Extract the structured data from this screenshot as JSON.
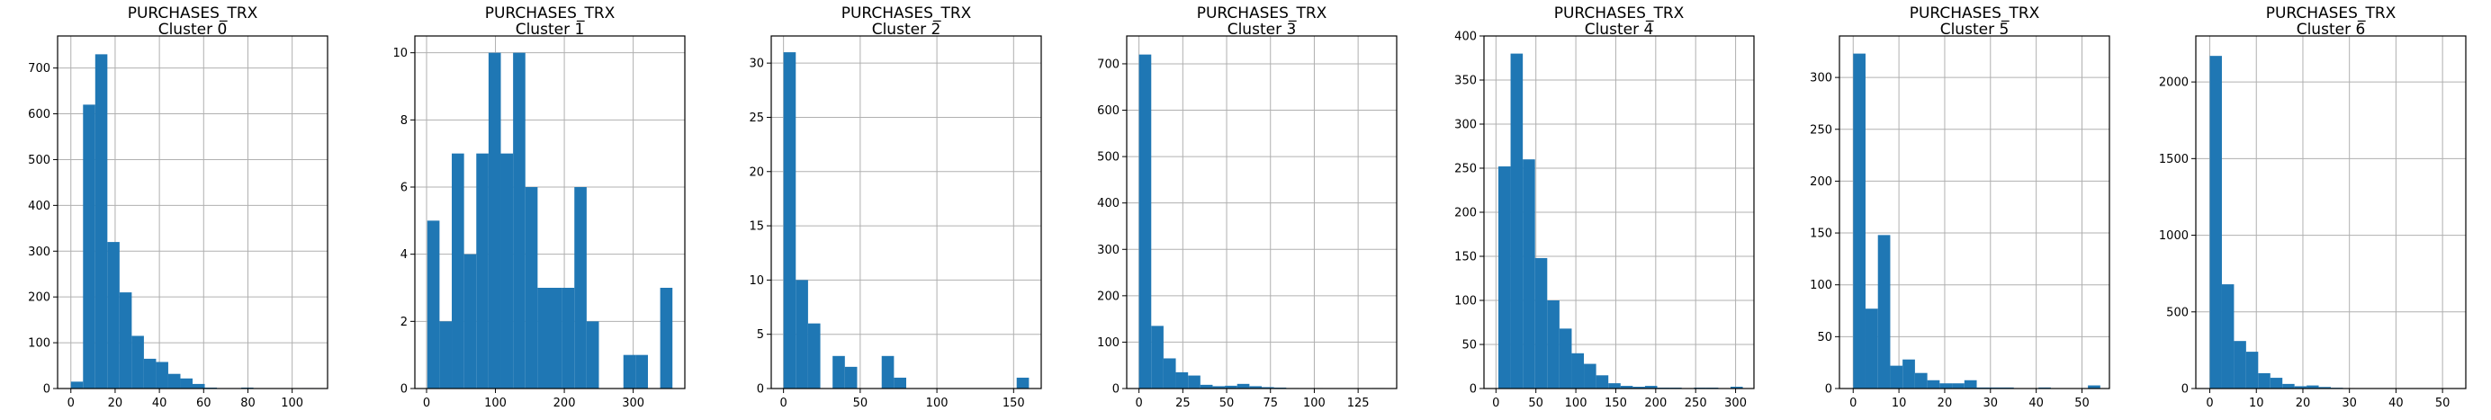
{
  "figure": {
    "bar_color": "#1f77b4",
    "grid_color": "#b0b0b0",
    "axis_color": "#000000"
  },
  "chart_data": [
    {
      "type": "bar",
      "title": "PURCHASES_TRX\nCluster 0",
      "grid": true,
      "xlim": [
        -6,
        116
      ],
      "ylim": [
        0,
        770
      ],
      "xticks": [
        0,
        20,
        40,
        60,
        80,
        100
      ],
      "yticks": [
        0,
        100,
        200,
        300,
        400,
        500,
        600,
        700
      ],
      "bin_edges": [
        0,
        5.5,
        11,
        16.5,
        22,
        27.5,
        33,
        38.5,
        44,
        49.5,
        55,
        60.5,
        66,
        71.5,
        77,
        82.5,
        88,
        93.5,
        99,
        104.5,
        110
      ],
      "values": [
        15,
        620,
        730,
        320,
        210,
        115,
        65,
        58,
        32,
        22,
        10,
        2,
        1,
        1,
        2,
        0,
        0,
        0,
        0,
        1
      ]
    },
    {
      "type": "bar",
      "title": "PURCHASES_TRX\nCluster 1",
      "grid": true,
      "xlim": [
        -17,
        375
      ],
      "ylim": [
        0,
        10.5
      ],
      "xticks": [
        0,
        100,
        200,
        300
      ],
      "yticks": [
        0,
        2,
        4,
        6,
        8,
        10
      ],
      "bin_edges": [
        1,
        18.8,
        36.6,
        54.4,
        72.2,
        90,
        107.8,
        125.6,
        143.4,
        161.2,
        179,
        196.8,
        214.6,
        232.4,
        250.2,
        268,
        285.8,
        303.6,
        321.4,
        339.2,
        357
      ],
      "values": [
        5,
        2,
        7,
        4,
        7,
        10,
        7,
        10,
        6,
        3,
        3,
        3,
        6,
        2,
        0,
        0,
        1,
        1,
        0,
        3
      ]
    },
    {
      "type": "bar",
      "title": "PURCHASES_TRX\nCluster 2",
      "grid": true,
      "xlim": [
        -8,
        168
      ],
      "ylim": [
        0,
        32.5
      ],
      "xticks": [
        0,
        50,
        100,
        150
      ],
      "yticks": [
        0,
        5,
        10,
        15,
        20,
        25,
        30
      ],
      "bin_edges": [
        0,
        8,
        16,
        24,
        32,
        40,
        48,
        56,
        64,
        72,
        80,
        88,
        96,
        104,
        112,
        120,
        128,
        136,
        144,
        152,
        160
      ],
      "values": [
        31,
        10,
        6,
        0,
        3,
        2,
        0,
        0,
        3,
        1,
        0,
        0,
        0,
        0,
        0,
        0,
        0,
        0,
        0,
        1
      ]
    },
    {
      "type": "bar",
      "title": "PURCHASES_TRX\nCluster 3",
      "grid": true,
      "xlim": [
        -7,
        147
      ],
      "ylim": [
        0,
        760
      ],
      "xticks": [
        0,
        25,
        50,
        75,
        100,
        125
      ],
      "yticks": [
        0,
        100,
        200,
        300,
        400,
        500,
        600,
        700
      ],
      "bin_edges": [
        0,
        7,
        14,
        21,
        28,
        35,
        42,
        49,
        56,
        63,
        70,
        77,
        84,
        91,
        98,
        105,
        112,
        119,
        126,
        133,
        140
      ],
      "values": [
        720,
        135,
        65,
        35,
        28,
        8,
        5,
        6,
        10,
        5,
        3,
        2,
        1,
        0,
        1,
        0,
        0,
        0,
        0,
        1
      ]
    },
    {
      "type": "bar",
      "title": "PURCHASES_TRX\nCluster 4",
      "grid": true,
      "xlim": [
        -15,
        323
      ],
      "ylim": [
        0,
        400
      ],
      "xticks": [
        0,
        50,
        100,
        150,
        200,
        250,
        300
      ],
      "yticks": [
        0,
        50,
        100,
        150,
        200,
        250,
        300,
        350,
        400
      ],
      "bin_edges": [
        3,
        18.3,
        33.6,
        48.9,
        64.2,
        79.5,
        94.8,
        110.1,
        125.4,
        140.7,
        156,
        171.3,
        186.6,
        201.9,
        217.2,
        232.5,
        247.8,
        263.1,
        278.4,
        293.7,
        309
      ],
      "values": [
        252,
        380,
        260,
        148,
        100,
        68,
        40,
        28,
        15,
        6,
        3,
        2,
        3,
        1,
        1,
        0,
        1,
        1,
        0,
        2
      ]
    },
    {
      "type": "bar",
      "title": "PURCHASES_TRX\nCluster 5",
      "grid": true,
      "xlim": [
        -3,
        56
      ],
      "ylim": [
        0,
        340
      ],
      "xticks": [
        0,
        10,
        20,
        30,
        40,
        50
      ],
      "yticks": [
        0,
        50,
        100,
        150,
        200,
        250,
        300
      ],
      "bin_edges": [
        0,
        2.7,
        5.4,
        8.1,
        10.8,
        13.5,
        16.2,
        18.9,
        21.6,
        24.3,
        27,
        29.7,
        32.4,
        35.1,
        37.8,
        40.5,
        43.2,
        45.9,
        48.6,
        51.3,
        54
      ],
      "values": [
        323,
        77,
        148,
        22,
        28,
        15,
        8,
        5,
        5,
        8,
        1,
        1,
        1,
        0,
        0,
        1,
        0,
        0,
        0,
        3
      ]
    },
    {
      "type": "bar",
      "title": "PURCHASES_TRX\nCluster 6",
      "grid": true,
      "xlim": [
        -3,
        55
      ],
      "ylim": [
        0,
        2300
      ],
      "xticks": [
        0,
        10,
        20,
        30,
        40,
        50
      ],
      "yticks": [
        0,
        500,
        1000,
        1500,
        2000
      ],
      "bin_edges": [
        0,
        2.6,
        5.2,
        7.8,
        10.4,
        13,
        15.6,
        18.2,
        20.8,
        23.4,
        26,
        28.6,
        31.2,
        33.8,
        36.4,
        39,
        41.6,
        44.2,
        46.8,
        49.4,
        52
      ],
      "values": [
        2170,
        680,
        310,
        240,
        100,
        70,
        30,
        15,
        20,
        10,
        5,
        3,
        2,
        1,
        1,
        0,
        1,
        0,
        0,
        1
      ]
    }
  ]
}
